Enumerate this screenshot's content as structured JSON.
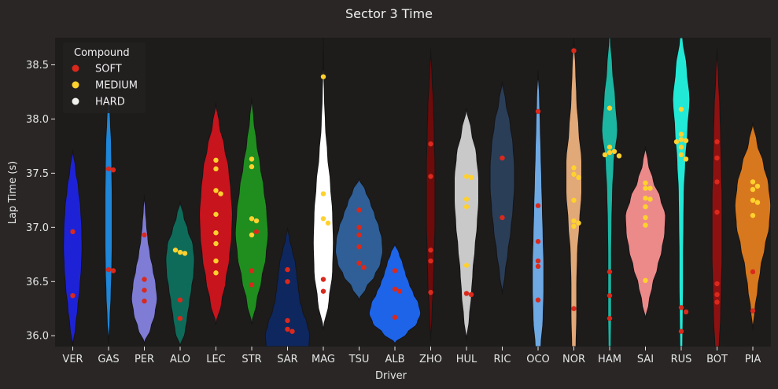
{
  "chart_data": {
    "type": "violin",
    "title": "Sector 3 Time",
    "xlabel": "Driver",
    "ylabel": "Lap Time (s)",
    "ylim": [
      35.9,
      38.75
    ],
    "yticks": [
      36.0,
      36.5,
      37.0,
      37.5,
      38.0,
      38.5
    ],
    "ytick_labels": [
      "36.0",
      "36.5",
      "37.0",
      "37.5",
      "38.0",
      "38.5"
    ],
    "grid": false,
    "legend": {
      "title": "Compound",
      "placement": "top-left",
      "entries": [
        {
          "label": "SOFT",
          "color": "#da291c"
        },
        {
          "label": "MEDIUM",
          "color": "#ffd12e"
        },
        {
          "label": "HARD",
          "color": "#f0f0ec"
        }
      ]
    },
    "colors": {
      "background": "#292625",
      "plot_background": "#1e1c1b",
      "text": "#e6e6e6",
      "violin_outline": "#151515"
    },
    "categories": [
      "VER",
      "GAS",
      "PER",
      "ALO",
      "LEC",
      "STR",
      "SAR",
      "MAG",
      "TSU",
      "ALB",
      "ZHO",
      "HUL",
      "RIC",
      "OCO",
      "NOR",
      "HAM",
      "SAI",
      "RUS",
      "BOT",
      "PIA"
    ],
    "violins": [
      {
        "driver": "VER",
        "color": "#1e22d6",
        "range": [
          35.9,
          37.72
        ],
        "profile": [
          0,
          0.08,
          0.14,
          0.2,
          0.24,
          0.26,
          0.25,
          0.22,
          0.16,
          0.08,
          0
        ]
      },
      {
        "driver": "GAS",
        "color": "#1f86d8",
        "range": [
          35.92,
          38.22
        ],
        "profile": [
          0,
          0.04,
          0.07,
          0.09,
          0.1,
          0.1,
          0.1,
          0.09,
          0.08,
          0.05,
          0
        ]
      },
      {
        "driver": "PER",
        "color": "#7f7cd6",
        "range": [
          35.93,
          37.3
        ],
        "profile": [
          0,
          0.18,
          0.3,
          0.36,
          0.32,
          0.24,
          0.16,
          0.1,
          0.06,
          0.03,
          0
        ]
      },
      {
        "driver": "ALO",
        "color": "#0e6b5a",
        "range": [
          35.9,
          37.24
        ],
        "profile": [
          0,
          0.14,
          0.2,
          0.26,
          0.32,
          0.38,
          0.4,
          0.36,
          0.22,
          0.1,
          0
        ]
      },
      {
        "driver": "LEC",
        "color": "#c8141d",
        "range": [
          36.1,
          38.15
        ],
        "profile": [
          0,
          0.16,
          0.28,
          0.38,
          0.44,
          0.46,
          0.42,
          0.36,
          0.24,
          0.1,
          0
        ]
      },
      {
        "driver": "STR",
        "color": "#1f8e1f",
        "range": [
          36.1,
          38.2
        ],
        "profile": [
          0,
          0.14,
          0.28,
          0.4,
          0.46,
          0.42,
          0.34,
          0.24,
          0.14,
          0.06,
          0
        ]
      },
      {
        "driver": "SAR",
        "color": "#0e275f",
        "range": [
          35.9,
          37.0
        ],
        "profile": [
          0.6,
          0.62,
          0.54,
          0.42,
          0.34,
          0.3,
          0.26,
          0.22,
          0.14,
          0.06,
          0
        ]
      },
      {
        "driver": "MAG",
        "color": "#ffffff",
        "range": [
          36.05,
          38.75
        ],
        "profile": [
          0,
          0.16,
          0.26,
          0.28,
          0.26,
          0.2,
          0.12,
          0.06,
          0.03,
          0.01,
          0
        ]
      },
      {
        "driver": "TSU",
        "color": "#2f5f96",
        "range": [
          36.33,
          37.45
        ],
        "profile": [
          0,
          0.2,
          0.44,
          0.6,
          0.66,
          0.64,
          0.56,
          0.44,
          0.32,
          0.18,
          0
        ]
      },
      {
        "driver": "ALB",
        "color": "#1d64e8",
        "range": [
          35.93,
          36.85
        ],
        "profile": [
          0,
          0.34,
          0.62,
          0.72,
          0.66,
          0.52,
          0.4,
          0.3,
          0.22,
          0.12,
          0
        ]
      },
      {
        "driver": "ZHO",
        "color": "#6d0b0b",
        "range": [
          35.95,
          38.65
        ],
        "profile": [
          0,
          0.04,
          0.08,
          0.1,
          0.12,
          0.12,
          0.12,
          0.1,
          0.08,
          0.04,
          0
        ]
      },
      {
        "driver": "HUL",
        "color": "#c9c9c9",
        "range": [
          35.95,
          38.1
        ],
        "profile": [
          0,
          0.08,
          0.14,
          0.18,
          0.24,
          0.3,
          0.34,
          0.34,
          0.28,
          0.14,
          0
        ]
      },
      {
        "driver": "RIC",
        "color": "#2b3e58",
        "range": [
          36.38,
          38.35
        ],
        "profile": [
          0,
          0.08,
          0.16,
          0.24,
          0.3,
          0.34,
          0.34,
          0.3,
          0.22,
          0.1,
          0
        ]
      },
      {
        "driver": "OCO",
        "color": "#6ea9e4",
        "range": [
          35.9,
          38.45
        ],
        "profile": [
          0.08,
          0.14,
          0.16,
          0.16,
          0.14,
          0.12,
          0.1,
          0.08,
          0.06,
          0.04,
          0
        ]
      },
      {
        "driver": "NOR",
        "color": "#e1a878",
        "range": [
          35.9,
          38.75
        ],
        "profile": [
          0.06,
          0.08,
          0.08,
          0.1,
          0.16,
          0.22,
          0.22,
          0.14,
          0.08,
          0.05,
          0
        ]
      },
      {
        "driver": "HAM",
        "color": "#1bb5a2",
        "range": [
          35.9,
          38.75
        ],
        "profile": [
          0.04,
          0.05,
          0.05,
          0.05,
          0.06,
          0.08,
          0.12,
          0.22,
          0.16,
          0.08,
          0.02
        ]
      },
      {
        "driver": "SAI",
        "color": "#ec8a8a",
        "range": [
          36.15,
          37.75
        ],
        "profile": [
          0,
          0.1,
          0.2,
          0.34,
          0.46,
          0.54,
          0.56,
          0.42,
          0.22,
          0.08,
          0
        ]
      },
      {
        "driver": "RUS",
        "color": "#22e8d6",
        "range": [
          35.9,
          38.75
        ],
        "profile": [
          0.04,
          0.05,
          0.06,
          0.06,
          0.07,
          0.08,
          0.12,
          0.18,
          0.24,
          0.16,
          0.04
        ]
      },
      {
        "driver": "BOT",
        "color": "#8e1111",
        "range": [
          35.9,
          38.65
        ],
        "profile": [
          0.06,
          0.1,
          0.12,
          0.14,
          0.14,
          0.14,
          0.12,
          0.1,
          0.08,
          0.04,
          0
        ]
      },
      {
        "driver": "PIA",
        "color": "#d8781e",
        "range": [
          36.05,
          37.97
        ],
        "profile": [
          0,
          0.06,
          0.14,
          0.22,
          0.34,
          0.46,
          0.5,
          0.44,
          0.3,
          0.12,
          0
        ]
      }
    ],
    "points": [
      {
        "driver": "VER",
        "compound": "SOFT",
        "values": [
          36.96,
          36.37
        ]
      },
      {
        "driver": "GAS",
        "compound": "SOFT",
        "values": [
          37.54,
          37.53,
          36.61,
          36.6
        ]
      },
      {
        "driver": "PER",
        "compound": "SOFT",
        "values": [
          36.93,
          36.52,
          36.42,
          36.32
        ]
      },
      {
        "driver": "ALO",
        "compound": "MEDIUM",
        "values": [
          36.77,
          36.76,
          36.79
        ]
      },
      {
        "driver": "ALO",
        "compound": "SOFT",
        "values": [
          36.33,
          36.16
        ]
      },
      {
        "driver": "LEC",
        "compound": "MEDIUM",
        "values": [
          37.34,
          37.31,
          37.62,
          37.54,
          37.12,
          36.95,
          36.85,
          36.69,
          36.58
        ]
      },
      {
        "driver": "STR",
        "compound": "MEDIUM",
        "values": [
          37.63,
          37.56,
          37.08,
          37.06,
          36.93
        ]
      },
      {
        "driver": "STR",
        "compound": "SOFT",
        "values": [
          36.96,
          36.6,
          36.47
        ]
      },
      {
        "driver": "SAR",
        "compound": "SOFT",
        "values": [
          36.61,
          36.5,
          36.14,
          36.06,
          36.04
        ]
      },
      {
        "driver": "MAG",
        "compound": "MEDIUM",
        "values": [
          38.39,
          37.31,
          37.08,
          37.04
        ]
      },
      {
        "driver": "MAG",
        "compound": "SOFT",
        "values": [
          36.52,
          36.41
        ]
      },
      {
        "driver": "TSU",
        "compound": "SOFT",
        "values": [
          37.16,
          37.0,
          36.93,
          36.82,
          36.67,
          36.63
        ]
      },
      {
        "driver": "ALB",
        "compound": "SOFT",
        "values": [
          36.6,
          36.43,
          36.41,
          36.17
        ]
      },
      {
        "driver": "ZHO",
        "compound": "SOFT",
        "values": [
          37.77,
          37.47,
          36.79,
          36.69,
          36.4
        ]
      },
      {
        "driver": "HUL",
        "compound": "MEDIUM",
        "values": [
          37.47,
          37.46,
          37.26,
          37.19,
          36.65
        ]
      },
      {
        "driver": "HUL",
        "compound": "SOFT",
        "values": [
          36.39,
          36.38
        ]
      },
      {
        "driver": "RIC",
        "compound": "SOFT",
        "values": [
          37.64,
          37.09
        ]
      },
      {
        "driver": "OCO",
        "compound": "SOFT",
        "values": [
          38.07,
          37.2,
          36.87,
          36.69,
          36.64,
          36.33
        ]
      },
      {
        "driver": "NOR",
        "compound": "MEDIUM",
        "values": [
          37.55,
          37.49,
          37.46,
          37.25,
          37.06,
          37.04,
          37.01
        ]
      },
      {
        "driver": "NOR",
        "compound": "SOFT",
        "values": [
          38.63,
          36.25
        ]
      },
      {
        "driver": "HAM",
        "compound": "MEDIUM",
        "values": [
          38.1,
          37.74,
          37.7,
          37.69,
          37.67,
          37.66
        ]
      },
      {
        "driver": "HAM",
        "compound": "SOFT",
        "values": [
          36.59,
          36.37,
          36.16
        ]
      },
      {
        "driver": "SAI",
        "compound": "MEDIUM",
        "values": [
          37.41,
          37.36,
          37.36,
          37.27,
          37.26,
          37.19,
          37.09,
          37.02,
          36.51
        ]
      },
      {
        "driver": "RUS",
        "compound": "MEDIUM",
        "values": [
          38.09,
          37.86,
          37.81,
          37.8,
          37.79,
          37.74,
          37.67,
          37.63
        ]
      },
      {
        "driver": "RUS",
        "compound": "SOFT",
        "values": [
          36.26,
          36.22,
          36.04
        ]
      },
      {
        "driver": "BOT",
        "compound": "SOFT",
        "values": [
          37.79,
          37.64,
          37.42,
          37.14,
          36.48,
          36.38,
          36.31
        ]
      },
      {
        "driver": "PIA",
        "compound": "MEDIUM",
        "values": [
          37.42,
          37.38,
          37.35,
          37.25,
          37.23,
          37.11
        ]
      },
      {
        "driver": "PIA",
        "compound": "SOFT",
        "values": [
          36.59,
          36.23
        ]
      }
    ]
  }
}
